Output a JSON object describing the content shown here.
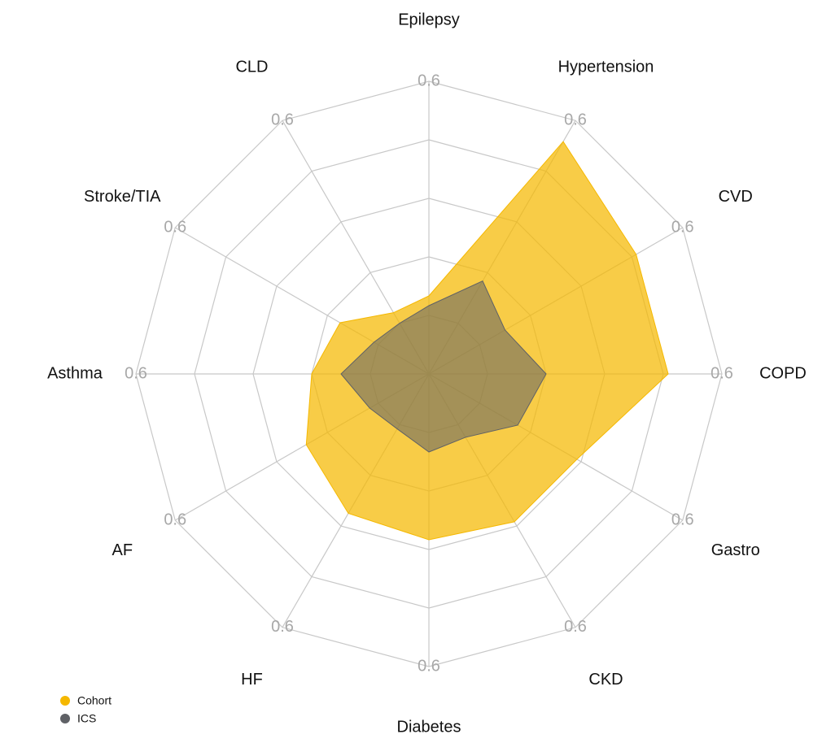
{
  "chart_data": {
    "type": "radar",
    "categories": [
      "Epilepsy",
      "Hypertension",
      "CVD",
      "COPD",
      "Gastro",
      "CKD",
      "Diabetes",
      "HF",
      "AF",
      "Asthma",
      "Stroke/TIA",
      "CLD"
    ],
    "series": [
      {
        "name": "Cohort",
        "color": "#f5b800",
        "values": [
          0.16,
          0.55,
          0.49,
          0.49,
          0.35,
          0.35,
          0.34,
          0.33,
          0.29,
          0.24,
          0.21,
          0.145
        ]
      },
      {
        "name": "ICS",
        "color": "#5f6166",
        "values": [
          0.14,
          0.22,
          0.18,
          0.24,
          0.21,
          0.15,
          0.16,
          0.13,
          0.14,
          0.18,
          0.13,
          0.12
        ]
      }
    ],
    "rlim": [
      0,
      0.6
    ],
    "rgrid": [
      0.12,
      0.24,
      0.36,
      0.48,
      0.6
    ],
    "rticks": [
      0.6
    ],
    "legend": "bottom-left"
  }
}
